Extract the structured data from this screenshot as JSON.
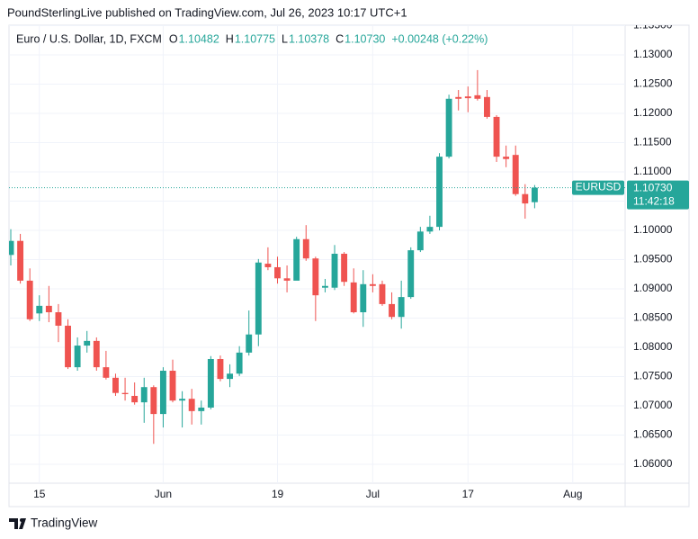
{
  "chart_data": {
    "type": "candlestick",
    "title": "PoundSterlingLive published on TradingView.com, Jul 26, 2023 10:17 UTC+1",
    "symbol": "Euro / U.S. Dollar, 1D, FXCM",
    "ohlc": [
      {
        "key": "O",
        "label": "1.10482"
      },
      {
        "key": "H",
        "label": "1.10775"
      },
      {
        "key": "L",
        "label": "1.10378"
      },
      {
        "key": "C",
        "label": "1.10730"
      }
    ],
    "change": "+0.00248 (+0.22%)",
    "symbol_tag": "EURUSD",
    "last_price": {
      "value": 1.1073,
      "label": "1.10730"
    },
    "countdown": "11:42:18",
    "brand": "TradingView",
    "up_color": "#26a69a",
    "down_color": "#ef5350",
    "grid": true,
    "categories": [
      null,
      null,
      null,
      "15",
      null,
      null,
      null,
      null,
      null,
      null,
      null,
      null,
      null,
      null,
      null,
      null,
      "Jun",
      null,
      null,
      null,
      null,
      null,
      null,
      null,
      null,
      null,
      null,
      null,
      "19",
      null,
      null,
      null,
      null,
      null,
      null,
      null,
      null,
      null,
      "Jul",
      null,
      null,
      null,
      null,
      null,
      null,
      null,
      null,
      null,
      "17",
      null,
      null,
      null,
      null,
      null,
      null,
      null,
      null,
      null,
      null,
      "Aug",
      null,
      null,
      null,
      null,
      null
    ],
    "open": [
      1.0958,
      1.0982,
      1.0914,
      1.0858,
      1.0871,
      1.086,
      1.0837,
      1.0766,
      1.0803,
      1.0811,
      1.0766,
      1.0748,
      1.0722,
      1.0717,
      1.0706,
      1.0732,
      1.0686,
      1.076,
      1.0709,
      1.0712,
      1.0691,
      1.0697,
      1.078,
      1.0746,
      1.0755,
      1.0791,
      1.0822,
      1.0943,
      1.0937,
      1.0918,
      1.0914,
      1.0985,
      1.0952,
      1.0902,
      1.0902,
      1.096,
      1.0911,
      1.086,
      1.0908,
      1.0908,
      1.0874,
      1.0852,
      1.0886,
      1.0966,
      1.0998,
      1.1006,
      1.1126,
      1.1228,
      1.1229,
      1.1231,
      1.1228,
      1.1194,
      1.1126,
      1.1129,
      1.1062,
      1.10482,
      null,
      null,
      null,
      null,
      null,
      null,
      null,
      null,
      null
    ],
    "high": [
      1.1002,
      1.0994,
      1.0935,
      1.0889,
      1.0905,
      1.0874,
      1.0848,
      1.0817,
      1.0828,
      1.0817,
      1.0794,
      1.0755,
      1.0748,
      1.074,
      1.0748,
      1.0735,
      1.0766,
      1.0779,
      1.0725,
      1.0729,
      1.0709,
      1.0785,
      1.0786,
      1.0771,
      1.0802,
      1.0863,
      1.0951,
      1.0971,
      1.0955,
      1.094,
      1.0989,
      1.1009,
      1.0955,
      1.0917,
      1.0975,
      1.0963,
      1.0935,
      1.0932,
      1.0925,
      1.0914,
      1.0894,
      1.0914,
      1.0971,
      1.1006,
      1.1025,
      1.1132,
      1.1232,
      1.124,
      1.1246,
      1.1274,
      1.124,
      1.1197,
      1.1145,
      1.1145,
      1.1079,
      1.10775,
      null,
      null,
      null,
      null,
      null,
      null,
      null,
      null,
      null
    ],
    "low": [
      1.094,
      1.0909,
      1.0845,
      1.0845,
      1.0843,
      1.0809,
      1.0763,
      1.076,
      1.0791,
      1.076,
      1.0745,
      1.0717,
      1.0709,
      1.0702,
      1.0671,
      1.0635,
      1.0663,
      1.0706,
      1.0663,
      1.0668,
      1.0668,
      1.0694,
      1.0742,
      1.0732,
      1.0751,
      1.0786,
      1.0802,
      1.0932,
      1.0909,
      1.0894,
      1.0917,
      1.0948,
      1.0845,
      1.0894,
      1.0898,
      1.0905,
      1.0858,
      1.0835,
      1.0894,
      1.0871,
      1.0848,
      1.0832,
      1.0883,
      1.0963,
      1.0994,
      1.1,
      1.1123,
      1.1205,
      1.1202,
      1.1222,
      1.1191,
      1.1117,
      1.1108,
      1.1059,
      1.102,
      1.10378,
      null,
      null,
      null,
      null,
      null,
      null,
      null,
      null,
      null
    ],
    "close": [
      1.0982,
      1.0914,
      1.0848,
      1.0871,
      1.086,
      1.0837,
      1.0766,
      1.0803,
      1.0811,
      1.0766,
      1.0748,
      1.0722,
      1.072,
      1.0706,
      1.0732,
      1.0686,
      1.076,
      1.0709,
      1.0712,
      1.0691,
      1.0697,
      1.078,
      1.0746,
      1.0755,
      1.0791,
      1.0822,
      1.0945,
      1.0937,
      1.0918,
      1.0914,
      1.0985,
      1.0952,
      1.0889,
      1.0905,
      1.096,
      1.0912,
      1.086,
      1.0908,
      1.0905,
      1.0874,
      1.0852,
      1.0886,
      1.0966,
      1.0998,
      1.1006,
      1.1126,
      1.1225,
      1.1225,
      1.1226,
      1.1225,
      1.1194,
      1.1126,
      1.1122,
      1.1062,
      1.1046,
      1.1073,
      null,
      null,
      null,
      null,
      null,
      null,
      null,
      null,
      null
    ],
    "ylim": [
      1.05677,
      1.13508
    ],
    "yticks": [
      {
        "value": 1.06,
        "label": "1.06000"
      },
      {
        "value": 1.065,
        "label": "1.06500"
      },
      {
        "value": 1.07,
        "label": "1.07000"
      },
      {
        "value": 1.075,
        "label": "1.07500"
      },
      {
        "value": 1.08,
        "label": "1.08000"
      },
      {
        "value": 1.085,
        "label": "1.08500"
      },
      {
        "value": 1.09,
        "label": "1.09000"
      },
      {
        "value": 1.095,
        "label": "1.09500"
      },
      {
        "value": 1.1,
        "label": "1.10000"
      },
      {
        "value": 1.105,
        "label": "1.10500"
      },
      {
        "value": 1.11,
        "label": "1.11000"
      },
      {
        "value": 1.115,
        "label": "1.11500"
      },
      {
        "value": 1.12,
        "label": "1.12000"
      },
      {
        "value": 1.125,
        "label": "1.12500"
      },
      {
        "value": 1.13,
        "label": "1.13000"
      },
      {
        "value": 1.135,
        "label": "1.13500"
      }
    ]
  }
}
